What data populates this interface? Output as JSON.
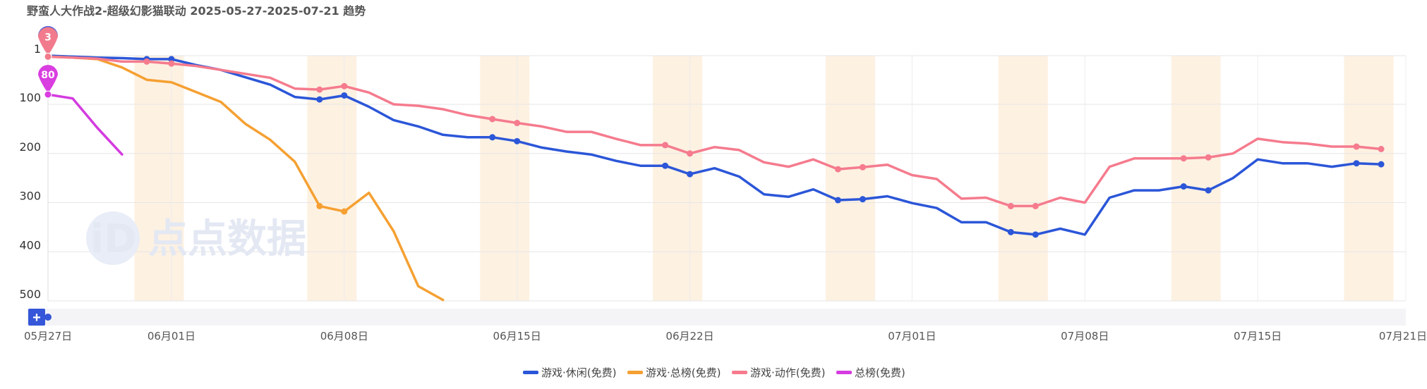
{
  "title": "野蛮人大作战2-超级幻影猫联动 2025-05-27-2025-07-21 趋势",
  "watermark": {
    "logo_text": "iD",
    "name": "点点数据"
  },
  "chart_data": {
    "type": "line",
    "x_start": "2025-05-27",
    "x_end": "2025-07-21",
    "x_tick_labels": [
      "05月27日",
      "06月01日",
      "06月08日",
      "06月15日",
      "06月22日",
      "07月01日",
      "07月08日",
      "07月15日",
      "07月21日"
    ],
    "x_tick_dates": [
      "2025-05-27",
      "2025-06-01",
      "2025-06-08",
      "2025-06-15",
      "2025-06-22",
      "2025-07-01",
      "2025-07-08",
      "2025-07-15",
      "2025-07-21"
    ],
    "y_tick_labels": [
      "1",
      "100",
      "200",
      "300",
      "400",
      "500"
    ],
    "y_tick_values": [
      1,
      100,
      200,
      300,
      400,
      500
    ],
    "ylim": [
      1,
      500
    ],
    "y_inverted": true,
    "grid": true,
    "legend_position": "bottom",
    "weekend_bands": [
      [
        "2025-05-31",
        "2025-06-01"
      ],
      [
        "2025-06-07",
        "2025-06-08"
      ],
      [
        "2025-06-14",
        "2025-06-15"
      ],
      [
        "2025-06-21",
        "2025-06-22"
      ],
      [
        "2025-06-28",
        "2025-06-29"
      ],
      [
        "2025-07-05",
        "2025-07-06"
      ],
      [
        "2025-07-12",
        "2025-07-13"
      ],
      [
        "2025-07-19",
        "2025-07-20"
      ]
    ],
    "markers": [
      {
        "series": "游戏·休闲(免费)",
        "label": "1",
        "date": "2025-05-27",
        "value": 1,
        "color": "#3b5bd9"
      },
      {
        "series": "游戏·动作(免费)",
        "label": "3",
        "date": "2025-05-27",
        "value": 3,
        "color": "#f17b8c"
      },
      {
        "series": "总榜(免费)",
        "label": "80",
        "date": "2025-05-27",
        "value": 80,
        "color": "#d93ee0"
      }
    ],
    "series": [
      {
        "name": "游戏·休闲(免费)",
        "color": "#2b56d8",
        "start": "2025-05-27",
        "values": [
          1,
          3,
          5,
          6,
          8,
          8,
          20,
          30,
          45,
          60,
          85,
          90,
          82,
          105,
          132,
          145,
          162,
          167,
          167,
          175,
          188,
          196,
          202,
          215,
          225,
          225,
          242,
          230,
          247,
          283,
          288,
          273,
          295,
          293,
          287,
          301,
          311,
          340,
          340,
          360,
          365,
          353,
          365,
          290,
          275,
          275,
          267,
          275,
          250,
          212,
          220,
          220,
          227,
          220,
          222
        ],
        "point_dates": [
          "2025-05-27",
          "2025-05-31",
          "2025-06-01",
          "2025-06-07",
          "2025-06-08",
          "2025-06-14",
          "2025-06-15",
          "2025-06-21",
          "2025-06-22",
          "2025-06-28",
          "2025-06-29",
          "2025-07-05",
          "2025-07-06",
          "2025-07-12",
          "2025-07-13",
          "2025-07-19",
          "2025-07-20"
        ]
      },
      {
        "name": "游戏·总榜(免费)",
        "color": "#f5a032",
        "start": "2025-05-27",
        "values": [
          3,
          5,
          8,
          25,
          50,
          55,
          75,
          95,
          140,
          172,
          217,
          307,
          318,
          280,
          358,
          470,
          498
        ],
        "point_dates": [
          "2025-05-27",
          "2025-06-07",
          "2025-06-08"
        ]
      },
      {
        "name": "游戏·动作(免费)",
        "color": "#f57b8d",
        "start": "2025-05-27",
        "values": [
          3,
          5,
          7,
          13,
          13,
          17,
          22,
          30,
          38,
          46,
          68,
          70,
          63,
          76,
          100,
          103,
          110,
          122,
          130,
          138,
          145,
          156,
          156,
          170,
          183,
          183,
          200,
          187,
          193,
          218,
          227,
          212,
          232,
          228,
          223,
          244,
          252,
          292,
          290,
          307,
          307,
          290,
          300,
          227,
          210,
          210,
          210,
          208,
          200,
          170,
          177,
          180,
          186,
          186,
          191
        ],
        "point_dates": [
          "2025-05-27",
          "2025-05-31",
          "2025-06-01",
          "2025-06-07",
          "2025-06-08",
          "2025-06-14",
          "2025-06-15",
          "2025-06-21",
          "2025-06-22",
          "2025-06-28",
          "2025-06-29",
          "2025-07-05",
          "2025-07-06",
          "2025-07-12",
          "2025-07-13",
          "2025-07-19",
          "2025-07-20"
        ]
      },
      {
        "name": "总榜(免费)",
        "color": "#d43be0",
        "start": "2025-05-27",
        "values": [
          80,
          88,
          148,
          202
        ],
        "point_dates": [
          "2025-05-27"
        ]
      }
    ]
  },
  "zoom": {
    "plus_label": "+"
  }
}
